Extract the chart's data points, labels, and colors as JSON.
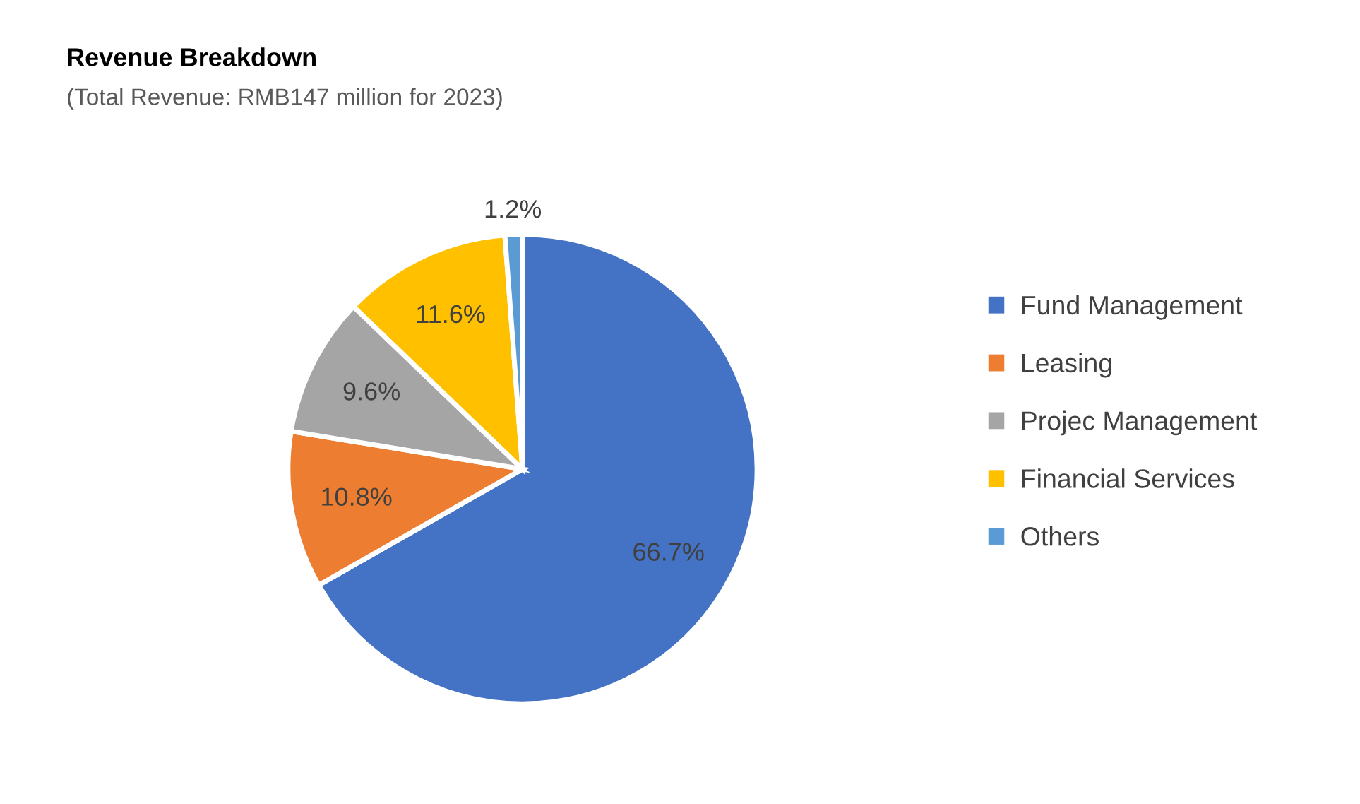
{
  "chart_data": {
    "type": "pie",
    "title": "Revenue Breakdown",
    "subtitle": "(Total Revenue: RMB147 million for 2023)",
    "categories": [
      "Fund Management",
      "Leasing",
      "Projec Management",
      "Financial Services",
      "Others"
    ],
    "values": [
      66.7,
      10.8,
      9.6,
      11.6,
      1.2
    ],
    "colors": [
      "#4472c4",
      "#ed7d31",
      "#a5a5a5",
      "#ffc000",
      "#5b9bd5"
    ],
    "value_labels": [
      "66.7%",
      "10.8%",
      "9.6%",
      "11.6%",
      "1.2%"
    ],
    "legend": "right"
  }
}
